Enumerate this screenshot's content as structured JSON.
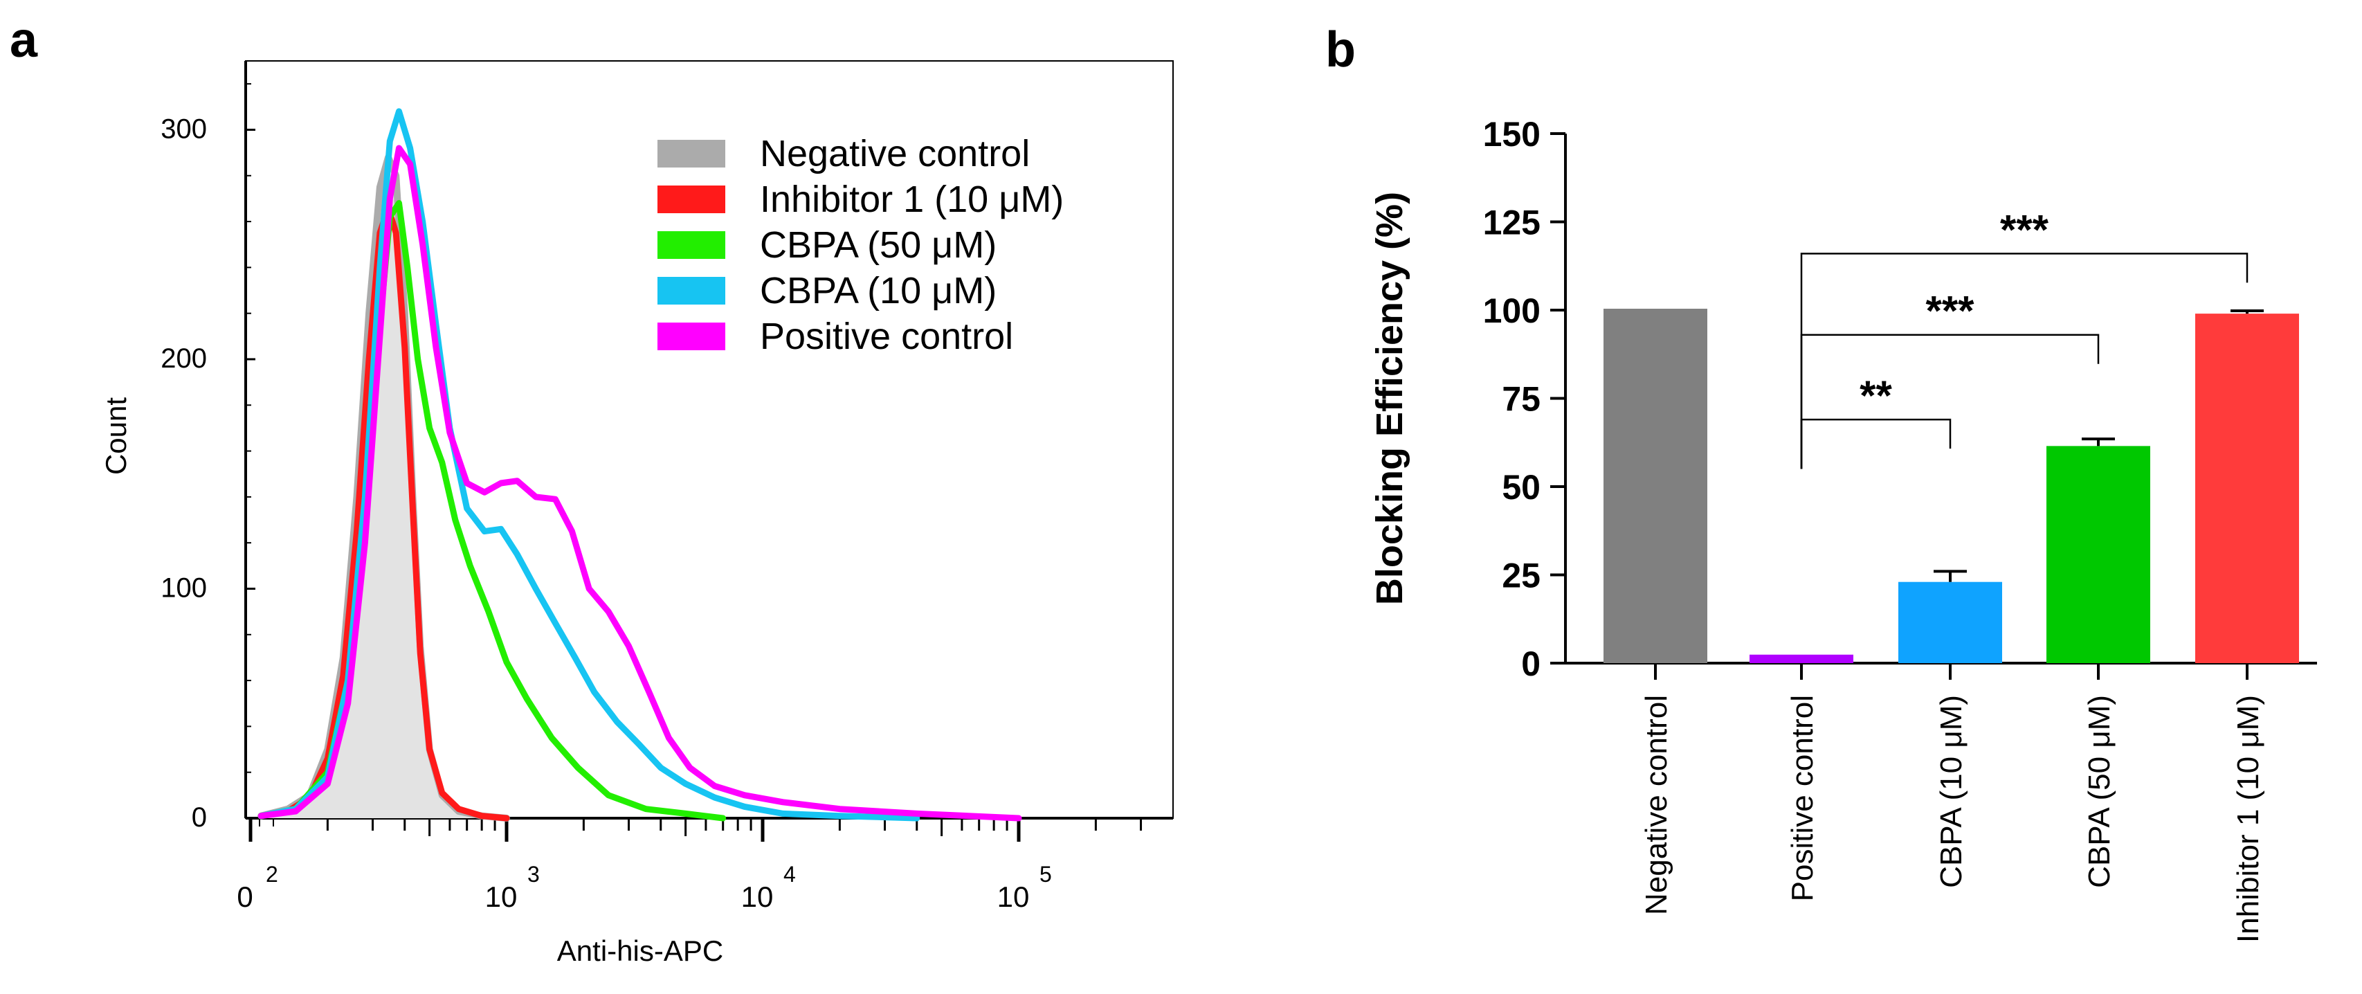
{
  "chart_data": [
    {
      "panel": "a",
      "type": "line",
      "subtype": "histogram",
      "title": "",
      "xlabel": "Anti-his-APC",
      "ylabel": "Count",
      "xscale": "biexponential (log above 10^2)",
      "xlim": [
        100,
        400000
      ],
      "ylim": [
        0,
        330
      ],
      "x_ticks": [
        {
          "value": 100,
          "base": "0",
          "exp": "2"
        },
        {
          "value": 1000,
          "base": "10",
          "exp": "3"
        },
        {
          "value": 10000,
          "base": "10",
          "exp": "4"
        },
        {
          "value": 100000,
          "base": "10",
          "exp": "5"
        }
      ],
      "y_ticks": [
        0,
        100,
        200,
        300
      ],
      "legend_position": "top-right",
      "grid": false,
      "series": [
        {
          "name": "Negative control",
          "color": "#ababab",
          "fill": "#e3e3e3",
          "style": "filled",
          "x": [
            110,
            140,
            170,
            200,
            230,
            260,
            290,
            320,
            345,
            370,
            400,
            430,
            460,
            500,
            560,
            650,
            800,
            1000
          ],
          "y": [
            1,
            4,
            10,
            30,
            70,
            140,
            220,
            275,
            288,
            280,
            220,
            140,
            75,
            30,
            10,
            3,
            1,
            0
          ]
        },
        {
          "name": "Inhibitor 1 (10 μM)",
          "color": "#ff1a1a",
          "style": "line",
          "x": [
            110,
            140,
            170,
            200,
            230,
            260,
            290,
            320,
            345,
            370,
            400,
            430,
            460,
            500,
            560,
            650,
            800,
            1000
          ],
          "y": [
            1,
            3,
            9,
            26,
            62,
            125,
            200,
            255,
            266,
            255,
            205,
            135,
            72,
            30,
            11,
            4,
            1,
            0
          ]
        },
        {
          "name": "CBPA (50 μM)",
          "color": "#22ee00",
          "style": "line",
          "x": [
            110,
            150,
            200,
            240,
            280,
            320,
            350,
            380,
            410,
            450,
            500,
            560,
            630,
            720,
            850,
            1000,
            1200,
            1500,
            1900,
            2500,
            3500,
            5000,
            7000
          ],
          "y": [
            1,
            4,
            20,
            60,
            130,
            215,
            262,
            268,
            240,
            200,
            170,
            155,
            130,
            110,
            90,
            68,
            52,
            35,
            22,
            10,
            4,
            2,
            0
          ]
        },
        {
          "name": "CBPA (10 μM)",
          "color": "#17c4f2",
          "style": "line",
          "x": [
            110,
            150,
            200,
            240,
            280,
            320,
            350,
            380,
            420,
            470,
            530,
            600,
            700,
            820,
            950,
            1100,
            1300,
            1550,
            1850,
            2200,
            2700,
            3300,
            4000,
            5000,
            6500,
            8500,
            12000,
            20000,
            40000
          ],
          "y": [
            1,
            4,
            18,
            60,
            140,
            240,
            295,
            308,
            292,
            260,
            215,
            170,
            135,
            125,
            126,
            115,
            100,
            85,
            70,
            55,
            42,
            32,
            22,
            15,
            9,
            5,
            2,
            1,
            0
          ]
        },
        {
          "name": "Positive control",
          "color": "#ff00ff",
          "style": "line",
          "x": [
            110,
            150,
            200,
            240,
            280,
            320,
            350,
            380,
            420,
            470,
            530,
            600,
            700,
            820,
            950,
            1100,
            1300,
            1550,
            1800,
            2100,
            2500,
            3000,
            3600,
            4300,
            5200,
            6500,
            8500,
            12000,
            20000,
            40000,
            100000
          ],
          "y": [
            1,
            3,
            15,
            50,
            120,
            210,
            270,
            292,
            285,
            250,
            205,
            168,
            146,
            142,
            146,
            147,
            140,
            139,
            125,
            100,
            90,
            75,
            55,
            35,
            22,
            14,
            10,
            7,
            4,
            2,
            0
          ]
        }
      ]
    },
    {
      "panel": "b",
      "type": "bar",
      "title": "",
      "xlabel": "",
      "ylabel": "Blocking Efficiency (%)",
      "ylim": [
        0,
        150
      ],
      "y_ticks": [
        0,
        25,
        50,
        75,
        100,
        125,
        150
      ],
      "grid": false,
      "categories": [
        "Negative control",
        "Positive control",
        "CBPA (10 μM)",
        "CBPA (50 μM)",
        "Inhibitor 1 (10 μM)"
      ],
      "values": [
        100,
        2,
        23,
        61.5,
        99
      ],
      "errors": [
        0,
        0,
        3,
        2,
        0.8
      ],
      "colors": [
        "#808080",
        "#b000ff",
        "#0fa3ff",
        "#00c800",
        "#ff3b3b"
      ],
      "significance": [
        {
          "from": "Positive control",
          "to": "CBPA (10 μM)",
          "label": "**",
          "bracket_y": 69
        },
        {
          "from": "Positive control",
          "to": "CBPA (50 μM)",
          "label": "***",
          "bracket_y": 93
        },
        {
          "from": "Positive control",
          "to": "Inhibitor 1 (10 μM)",
          "label": "***",
          "bracket_y": 116
        }
      ]
    }
  ],
  "panel_labels": {
    "a": "a",
    "b": "b"
  }
}
